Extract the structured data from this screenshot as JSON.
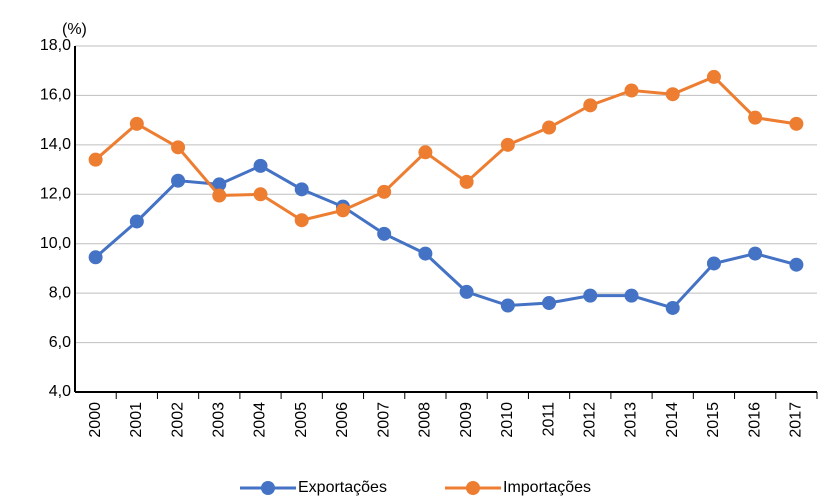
{
  "chart_data": {
    "type": "line",
    "y_label": "(%)",
    "categories": [
      "2000",
      "2001",
      "2002",
      "2003",
      "2004",
      "2005",
      "2006",
      "2007",
      "2008",
      "2009",
      "2010",
      "2011",
      "2012",
      "2013",
      "2014",
      "2015",
      "2016",
      "2017"
    ],
    "series": [
      {
        "name": "Exportações",
        "color": "#4472c4",
        "values": [
          9.45,
          10.9,
          12.55,
          12.4,
          13.15,
          12.2,
          11.5,
          10.4,
          9.6,
          8.05,
          7.5,
          7.6,
          7.9,
          7.9,
          7.4,
          9.2,
          9.6,
          9.15
        ]
      },
      {
        "name": "Importações",
        "color": "#ed7d31",
        "values": [
          13.4,
          14.85,
          13.9,
          11.95,
          12.0,
          10.95,
          11.35,
          12.1,
          13.7,
          12.5,
          14.0,
          14.7,
          15.6,
          16.2,
          16.05,
          16.75,
          15.1,
          14.85
        ]
      }
    ],
    "ylim": [
      4,
      18
    ],
    "yticks": [
      {
        "value": 4,
        "label": "4,0"
      },
      {
        "value": 6,
        "label": "6,0"
      },
      {
        "value": 8,
        "label": "8,0"
      },
      {
        "value": 10,
        "label": "10,0"
      },
      {
        "value": 12,
        "label": "12,0"
      },
      {
        "value": 14,
        "label": "14,0"
      },
      {
        "value": 16,
        "label": "16,0"
      },
      {
        "value": 18,
        "label": "18,0"
      }
    ],
    "grid": true,
    "legend": "bottom"
  }
}
